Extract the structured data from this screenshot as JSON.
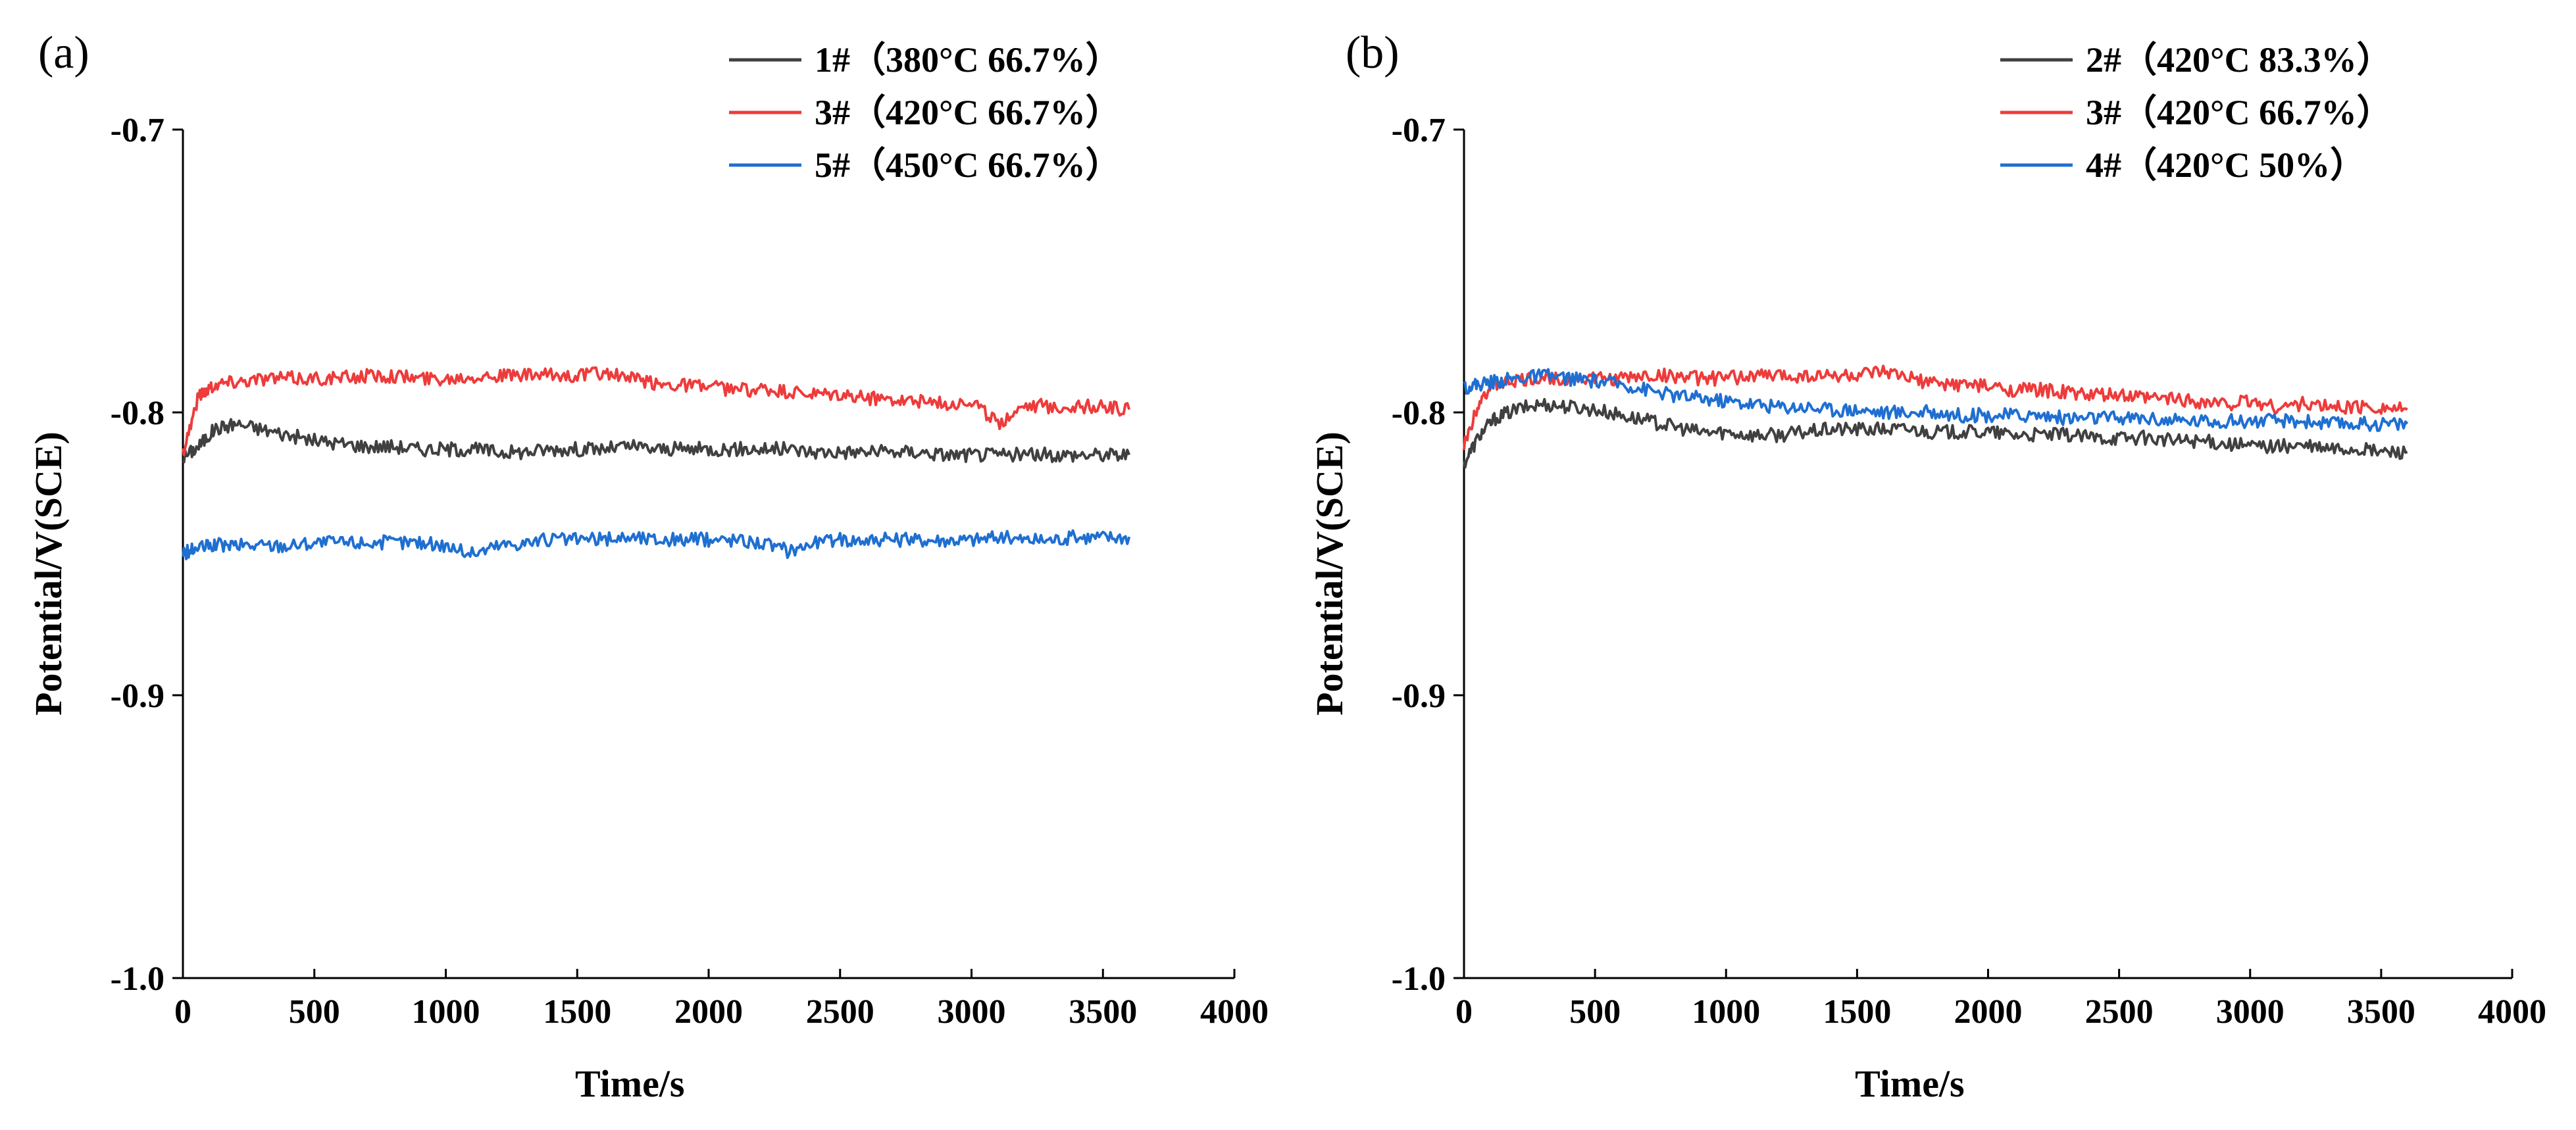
{
  "chart_data": [
    {
      "type": "line",
      "panel_label": "(a)",
      "xlabel": "Time/s",
      "ylabel": "Potential/V(SCE)",
      "xlim": [
        0,
        4000
      ],
      "ylim": [
        -1.0,
        -0.7
      ],
      "xticks": [
        0,
        500,
        1000,
        1500,
        2000,
        2500,
        3000,
        3500,
        4000
      ],
      "yticks": [
        -1.0,
        -0.9,
        -0.8,
        -0.7
      ],
      "x_tick_labels": [
        "0",
        "500",
        "1000",
        "1500",
        "2000",
        "2500",
        "3000",
        "3500",
        "4000"
      ],
      "y_tick_labels": [
        "-1.0",
        "-0.9",
        "-0.8",
        "-0.7"
      ],
      "legend_position": "top-right",
      "series": [
        {
          "name": "1#（380°C 66.7%）",
          "color": "#404040",
          "x": [
            0,
            60,
            120,
            200,
            300,
            400,
            500,
            600,
            700,
            800,
            900,
            1000,
            1100,
            1200,
            1300,
            1400,
            1500,
            1600,
            1700,
            1800,
            1900,
            2000,
            2100,
            2200,
            2300,
            2400,
            2500,
            2600,
            2700,
            2800,
            2900,
            3000,
            3100,
            3200,
            3300,
            3400,
            3500,
            3600
          ],
          "y": [
            -0.816,
            -0.812,
            -0.806,
            -0.804,
            -0.806,
            -0.808,
            -0.81,
            -0.811,
            -0.812,
            -0.812,
            -0.813,
            -0.813,
            -0.813,
            -0.814,
            -0.814,
            -0.813,
            -0.813,
            -0.813,
            -0.812,
            -0.813,
            -0.813,
            -0.813,
            -0.813,
            -0.813,
            -0.813,
            -0.814,
            -0.814,
            -0.814,
            -0.814,
            -0.814,
            -0.815,
            -0.815,
            -0.815,
            -0.815,
            -0.815,
            -0.815,
            -0.815,
            -0.815
          ]
        },
        {
          "name": "3#（420°C 66.7%）",
          "color": "#ee3b3b",
          "x": [
            0,
            60,
            120,
            200,
            300,
            400,
            500,
            600,
            700,
            800,
            900,
            1000,
            1100,
            1200,
            1300,
            1400,
            1500,
            1600,
            1700,
            1800,
            1900,
            2000,
            2100,
            2200,
            2300,
            2400,
            2500,
            2600,
            2700,
            2800,
            2900,
            3000,
            3100,
            3200,
            3300,
            3400,
            3500,
            3600
          ],
          "y": [
            -0.814,
            -0.794,
            -0.79,
            -0.789,
            -0.788,
            -0.788,
            -0.788,
            -0.788,
            -0.787,
            -0.787,
            -0.788,
            -0.788,
            -0.787,
            -0.787,
            -0.787,
            -0.787,
            -0.787,
            -0.786,
            -0.788,
            -0.79,
            -0.79,
            -0.791,
            -0.792,
            -0.792,
            -0.793,
            -0.794,
            -0.794,
            -0.795,
            -0.795,
            -0.796,
            -0.797,
            -0.796,
            -0.804,
            -0.797,
            -0.798,
            -0.798,
            -0.798,
            -0.799
          ]
        },
        {
          "name": "5#（450°C 66.7%）",
          "color": "#1f6fd1",
          "x": [
            0,
            60,
            120,
            200,
            300,
            400,
            500,
            600,
            700,
            800,
            900,
            1000,
            1100,
            1200,
            1300,
            1400,
            1500,
            1600,
            1700,
            1800,
            1900,
            2000,
            2100,
            2200,
            2300,
            2400,
            2500,
            2600,
            2700,
            2800,
            2900,
            3000,
            3100,
            3200,
            3300,
            3400,
            3500,
            3600
          ],
          "y": [
            -0.85,
            -0.848,
            -0.847,
            -0.847,
            -0.847,
            -0.847,
            -0.846,
            -0.846,
            -0.846,
            -0.846,
            -0.846,
            -0.847,
            -0.85,
            -0.847,
            -0.846,
            -0.845,
            -0.845,
            -0.845,
            -0.844,
            -0.845,
            -0.845,
            -0.845,
            -0.845,
            -0.846,
            -0.849,
            -0.846,
            -0.845,
            -0.845,
            -0.845,
            -0.845,
            -0.845,
            -0.845,
            -0.844,
            -0.845,
            -0.845,
            -0.844,
            -0.844,
            -0.844
          ]
        }
      ]
    },
    {
      "type": "line",
      "panel_label": "(b)",
      "xlabel": "Time/s",
      "ylabel": "Potential/V(SCE)",
      "xlim": [
        0,
        4000
      ],
      "ylim": [
        -1.0,
        -0.7
      ],
      "xticks": [
        0,
        500,
        1000,
        1500,
        2000,
        2500,
        3000,
        3500,
        4000
      ],
      "yticks": [
        -1.0,
        -0.9,
        -0.8,
        -0.7
      ],
      "x_tick_labels": [
        "0",
        "500",
        "1000",
        "1500",
        "2000",
        "2500",
        "3000",
        "3500",
        "4000"
      ],
      "y_tick_labels": [
        "-1.0",
        "-0.9",
        "-0.8",
        "-0.7"
      ],
      "legend_position": "top-right",
      "series": [
        {
          "name": "2#（420°C 83.3%）",
          "color": "#404040",
          "x": [
            0,
            60,
            120,
            200,
            300,
            400,
            500,
            600,
            700,
            800,
            900,
            1000,
            1100,
            1200,
            1300,
            1400,
            1500,
            1600,
            1700,
            1800,
            1900,
            2000,
            2100,
            2200,
            2300,
            2400,
            2500,
            2600,
            2700,
            2800,
            2900,
            3000,
            3100,
            3200,
            3300,
            3400,
            3500,
            3600
          ],
          "y": [
            -0.818,
            -0.808,
            -0.802,
            -0.799,
            -0.797,
            -0.798,
            -0.799,
            -0.801,
            -0.803,
            -0.805,
            -0.807,
            -0.807,
            -0.808,
            -0.808,
            -0.807,
            -0.806,
            -0.806,
            -0.806,
            -0.806,
            -0.807,
            -0.807,
            -0.807,
            -0.808,
            -0.808,
            -0.808,
            -0.809,
            -0.809,
            -0.809,
            -0.81,
            -0.81,
            -0.811,
            -0.812,
            -0.812,
            -0.812,
            -0.813,
            -0.813,
            -0.814,
            -0.814
          ]
        },
        {
          "name": "3#（420°C 66.7%）",
          "color": "#ee3b3b",
          "x": [
            0,
            60,
            120,
            200,
            300,
            400,
            500,
            600,
            700,
            800,
            900,
            1000,
            1100,
            1200,
            1300,
            1400,
            1500,
            1600,
            1700,
            1800,
            1900,
            2000,
            2100,
            2200,
            2300,
            2400,
            2500,
            2600,
            2700,
            2800,
            2900,
            3000,
            3100,
            3200,
            3300,
            3400,
            3500,
            3600
          ],
          "y": [
            -0.812,
            -0.795,
            -0.79,
            -0.789,
            -0.788,
            -0.788,
            -0.788,
            -0.788,
            -0.787,
            -0.787,
            -0.788,
            -0.788,
            -0.787,
            -0.787,
            -0.787,
            -0.787,
            -0.787,
            -0.786,
            -0.788,
            -0.79,
            -0.79,
            -0.791,
            -0.792,
            -0.792,
            -0.793,
            -0.794,
            -0.794,
            -0.795,
            -0.795,
            -0.796,
            -0.797,
            -0.796,
            -0.798,
            -0.797,
            -0.798,
            -0.798,
            -0.798,
            -0.799
          ]
        },
        {
          "name": "4#（420°C 50%）",
          "color": "#1f6fd1",
          "x": [
            0,
            60,
            120,
            200,
            300,
            400,
            500,
            600,
            700,
            800,
            900,
            1000,
            1100,
            1200,
            1300,
            1400,
            1500,
            1600,
            1700,
            1800,
            1900,
            2000,
            2100,
            2200,
            2300,
            2400,
            2500,
            2600,
            2700,
            2800,
            2900,
            3000,
            3100,
            3200,
            3300,
            3400,
            3500,
            3600
          ],
          "y": [
            -0.791,
            -0.79,
            -0.789,
            -0.788,
            -0.787,
            -0.788,
            -0.789,
            -0.79,
            -0.792,
            -0.794,
            -0.795,
            -0.796,
            -0.797,
            -0.798,
            -0.798,
            -0.799,
            -0.799,
            -0.8,
            -0.8,
            -0.8,
            -0.801,
            -0.801,
            -0.801,
            -0.801,
            -0.802,
            -0.802,
            -0.802,
            -0.802,
            -0.803,
            -0.803,
            -0.803,
            -0.803,
            -0.803,
            -0.803,
            -0.804,
            -0.804,
            -0.804,
            -0.804
          ]
        }
      ]
    }
  ]
}
